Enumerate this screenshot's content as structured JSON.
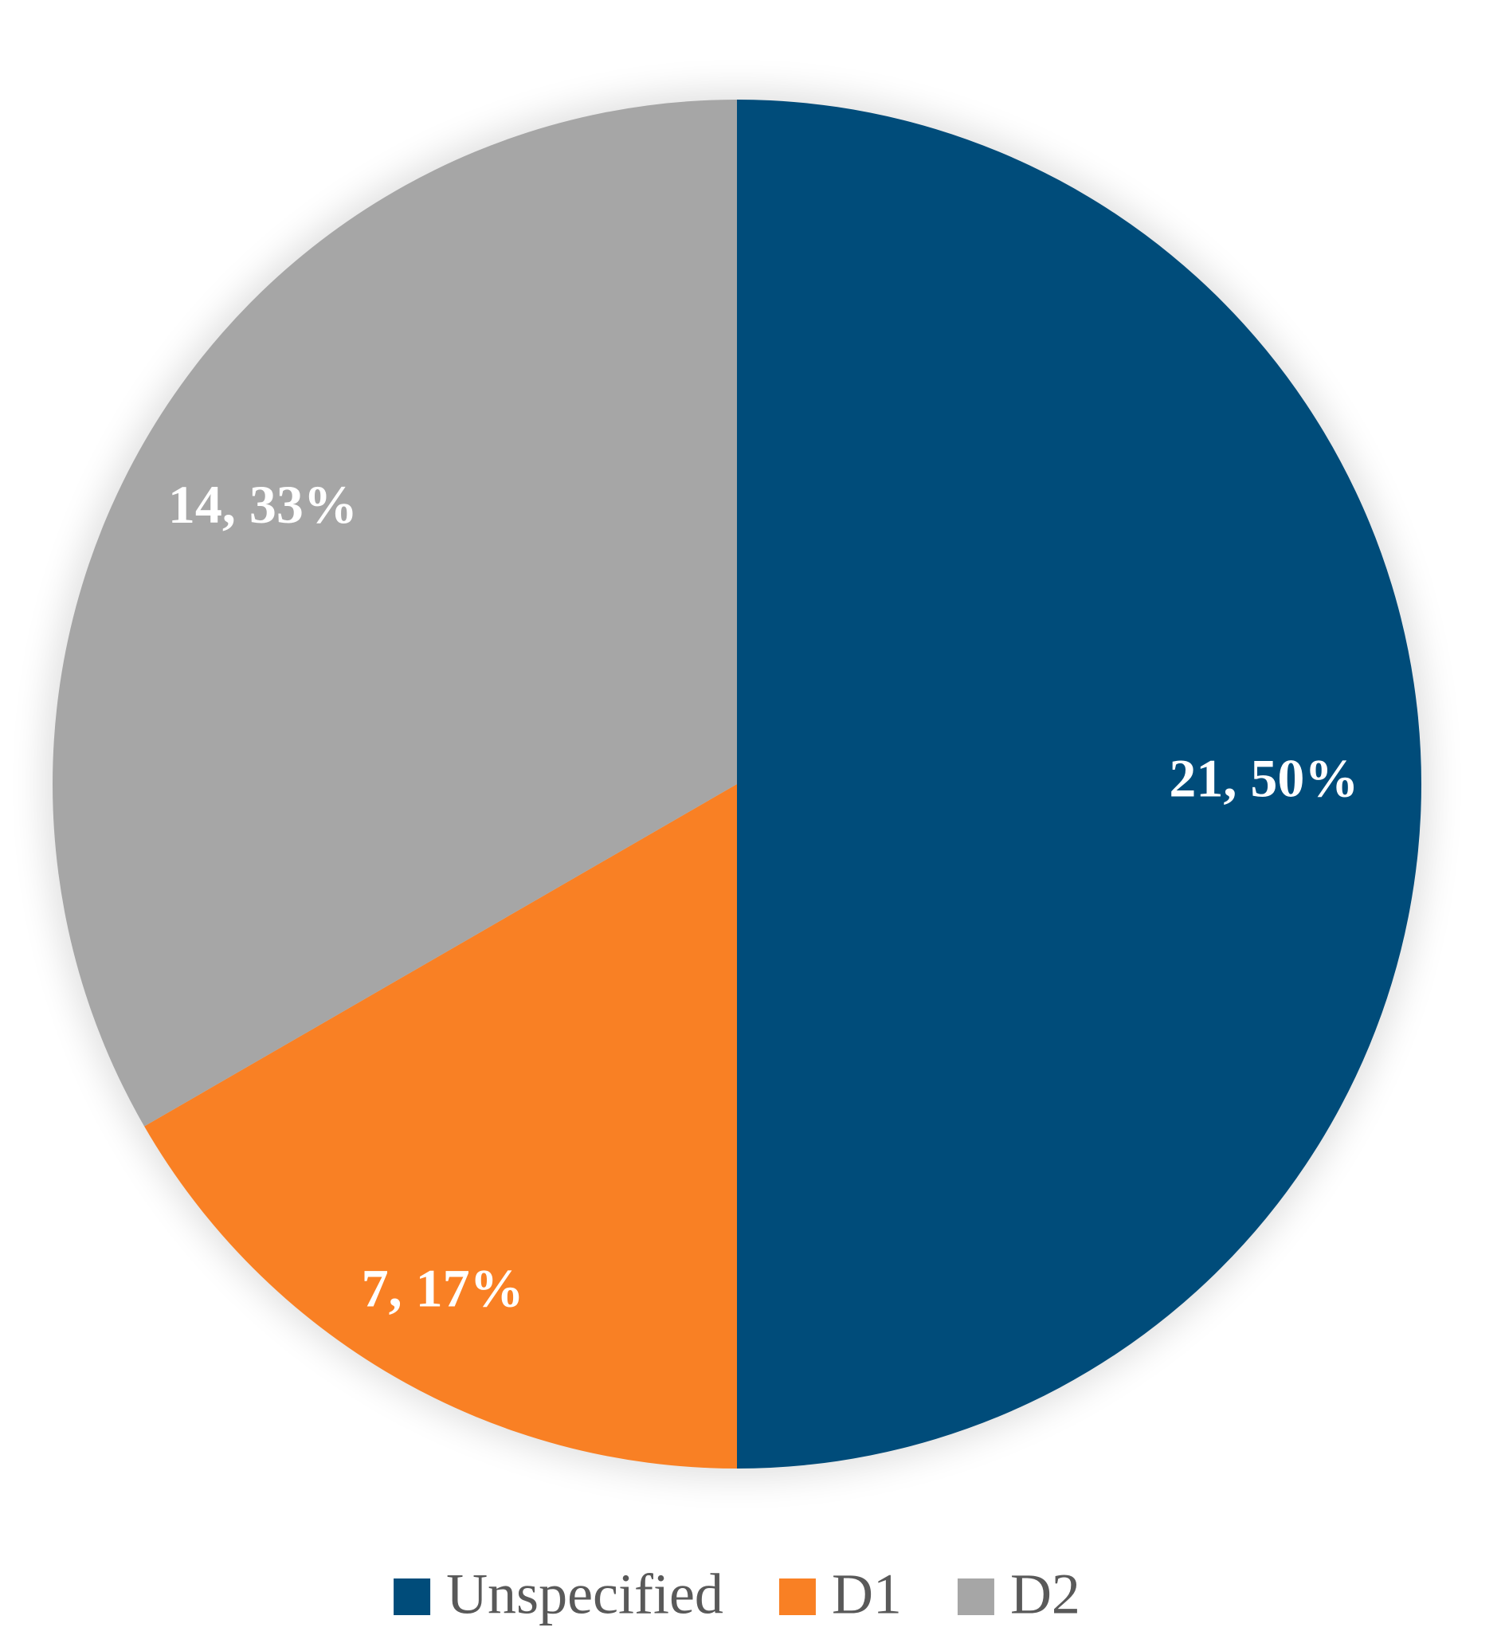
{
  "chart_data": {
    "type": "pie",
    "categories": [
      "Unspecified",
      "D1",
      "D2"
    ],
    "values": [
      21,
      7,
      14
    ],
    "value_labels": [
      "21, 50%",
      "7, 17%",
      "14, 33%"
    ],
    "colors": [
      "#004c7a",
      "#f98024",
      "#a6a6a6"
    ],
    "legend": "bottom"
  }
}
